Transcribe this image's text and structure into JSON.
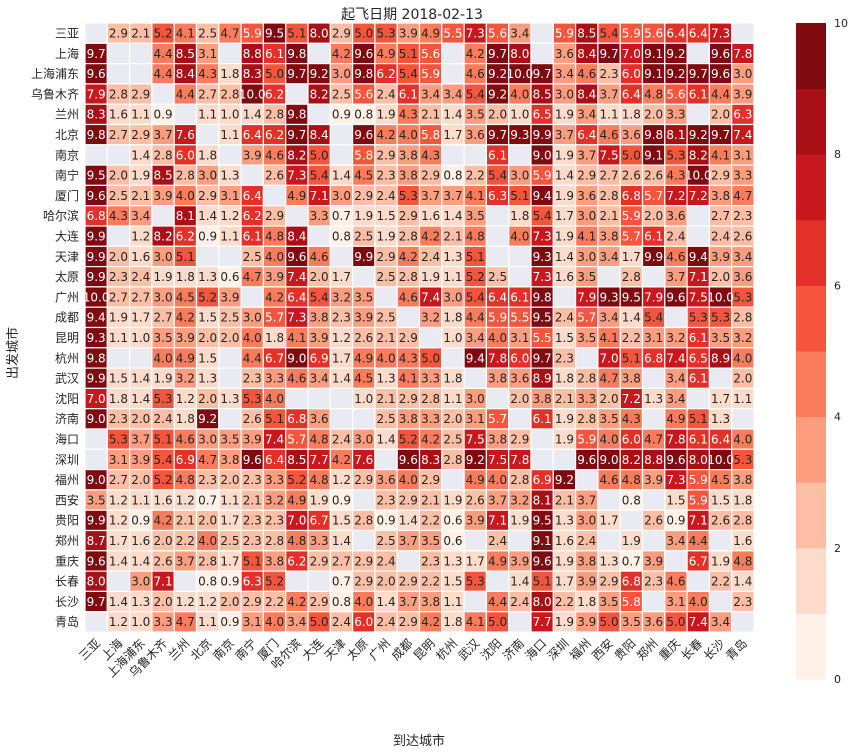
{
  "chart_data": {
    "type": "heatmap",
    "title": "起飞日期 2018-02-13",
    "xlabel": "到达城市",
    "ylabel": "出发城市",
    "x_categories": [
      "三亚",
      "上海",
      "上海浦东",
      "乌鲁木齐",
      "兰州",
      "北京",
      "南京",
      "南宁",
      "厦门",
      "哈尔滨",
      "大连",
      "天津",
      "太原",
      "广州",
      "成都",
      "昆明",
      "杭州",
      "武汉",
      "沈阳",
      "济南",
      "海口",
      "深圳",
      "福州",
      "西安",
      "贵阳",
      "郑州",
      "重庆",
      "长春",
      "长沙",
      "青岛"
    ],
    "y_categories": [
      "三亚",
      "上海",
      "上海浦东",
      "乌鲁木齐",
      "兰州",
      "北京",
      "南京",
      "南宁",
      "厦门",
      "哈尔滨",
      "大连",
      "天津",
      "太原",
      "广州",
      "成都",
      "昆明",
      "杭州",
      "武汉",
      "沈阳",
      "济南",
      "海口",
      "深圳",
      "福州",
      "西安",
      "贵阳",
      "郑州",
      "重庆",
      "长春",
      "长沙",
      "青岛"
    ],
    "values": [
      [
        null,
        2.9,
        2.1,
        5.2,
        4.1,
        2.5,
        4.7,
        5.9,
        9.5,
        5.1,
        8.0,
        2.9,
        5.0,
        5.3,
        3.9,
        4.9,
        5.5,
        7.3,
        5.6,
        3.4,
        null,
        5.9,
        8.5,
        5.4,
        5.9,
        5.6,
        6.4,
        6.4,
        7.3,
        null
      ],
      [
        9.7,
        null,
        null,
        4.4,
        8.5,
        3.1,
        null,
        8.8,
        6.1,
        9.8,
        null,
        4.2,
        9.6,
        4.9,
        5.1,
        5.6,
        null,
        4.2,
        9.7,
        8.0,
        null,
        3.6,
        8.4,
        9.7,
        7.0,
        9.1,
        9.2,
        null,
        9.6,
        7.8
      ],
      [
        9.6,
        null,
        null,
        4.4,
        8.4,
        4.3,
        1.8,
        8.3,
        5.0,
        9.7,
        9.2,
        3.0,
        9.8,
        6.2,
        5.4,
        5.9,
        null,
        4.6,
        9.2,
        10.0,
        9.7,
        3.4,
        4.6,
        2.3,
        6.0,
        9.1,
        9.2,
        9.7,
        9.6,
        3.0
      ],
      [
        7.9,
        2.8,
        2.9,
        null,
        4.4,
        2.7,
        2.8,
        10.0,
        6.2,
        null,
        8.2,
        2.5,
        5.6,
        2.4,
        6.1,
        3.4,
        3.4,
        5.4,
        9.2,
        4.0,
        8.5,
        3.0,
        8.4,
        3.7,
        6.4,
        4.8,
        5.6,
        6.1,
        4.4,
        3.9
      ],
      [
        8.3,
        1.6,
        1.1,
        0.9,
        null,
        1.1,
        1.0,
        1.4,
        2.8,
        9.8,
        null,
        0.9,
        0.8,
        1.9,
        4.3,
        2.1,
        1.4,
        3.5,
        2.0,
        1.0,
        6.5,
        1.9,
        3.4,
        1.1,
        1.8,
        2.0,
        3.3,
        null,
        2.0,
        6.3
      ],
      [
        9.8,
        2.7,
        2.9,
        3.7,
        7.6,
        null,
        1.1,
        6.4,
        6.2,
        9.7,
        8.4,
        null,
        9.6,
        4.2,
        4.0,
        5.8,
        1.7,
        3.6,
        9.7,
        9.3,
        9.9,
        3.7,
        6.4,
        4.6,
        3.6,
        9.8,
        8.1,
        9.2,
        9.7,
        7.4
      ],
      [
        null,
        null,
        1.4,
        2.8,
        6.0,
        1.8,
        null,
        3.9,
        4.6,
        8.2,
        5.0,
        null,
        5.8,
        2.9,
        3.8,
        4.3,
        null,
        null,
        6.1,
        null,
        9.0,
        1.9,
        3.7,
        7.5,
        5.0,
        9.1,
        5.3,
        8.2,
        4.1,
        3.1
      ],
      [
        9.5,
        2.0,
        1.9,
        8.5,
        2.8,
        3.0,
        1.3,
        null,
        2.6,
        7.3,
        5.4,
        1.4,
        4.5,
        2.3,
        3.8,
        2.9,
        0.8,
        2.2,
        5.4,
        3.0,
        5.9,
        1.4,
        2.9,
        2.7,
        2.6,
        2.6,
        4.3,
        10.0,
        2.9,
        3.3
      ],
      [
        9.6,
        2.5,
        2.1,
        3.9,
        4.0,
        2.9,
        3.1,
        6.4,
        null,
        4.9,
        7.1,
        3.0,
        2.9,
        2.4,
        5.3,
        3.7,
        3.7,
        4.1,
        6.3,
        5.1,
        9.4,
        1.9,
        3.6,
        2.8,
        6.8,
        5.7,
        7.2,
        7.2,
        3.8,
        4.7
      ],
      [
        6.8,
        4.3,
        3.4,
        null,
        8.1,
        1.4,
        1.2,
        6.2,
        2.9,
        null,
        3.3,
        0.7,
        1.9,
        1.5,
        2.9,
        1.6,
        1.4,
        3.5,
        null,
        1.8,
        5.4,
        1.7,
        3.0,
        2.1,
        5.9,
        2.0,
        3.6,
        null,
        2.7,
        2.3
      ],
      [
        9.9,
        null,
        1.2,
        8.2,
        6.2,
        0.9,
        1.1,
        6.1,
        4.8,
        8.4,
        null,
        0.8,
        2.5,
        1.9,
        2.8,
        4.2,
        2.1,
        4.8,
        null,
        4.0,
        7.3,
        1.9,
        4.1,
        3.8,
        5.7,
        6.1,
        2.4,
        null,
        2.4,
        2.6
      ],
      [
        9.9,
        2.0,
        1.6,
        3.0,
        5.1,
        null,
        null,
        2.5,
        4.0,
        9.6,
        4.6,
        null,
        9.9,
        2.9,
        4.2,
        2.4,
        1.3,
        5.1,
        null,
        null,
        9.3,
        1.4,
        3.0,
        3.4,
        1.7,
        9.9,
        4.6,
        9.4,
        3.9,
        3.4
      ],
      [
        9.9,
        2.3,
        2.4,
        1.9,
        1.8,
        1.3,
        0.6,
        4.7,
        3.9,
        7.4,
        2.0,
        1.7,
        null,
        2.5,
        2.8,
        1.9,
        1.1,
        5.2,
        2.5,
        null,
        7.3,
        1.6,
        3.5,
        null,
        2.8,
        null,
        3.7,
        7.1,
        2.0,
        3.6
      ],
      [
        10.0,
        2.7,
        2.7,
        3.0,
        4.5,
        5.2,
        3.9,
        null,
        4.2,
        6.4,
        5.4,
        3.2,
        3.5,
        null,
        4.6,
        7.4,
        3.0,
        5.4,
        6.4,
        6.1,
        9.8,
        null,
        7.9,
        9.3,
        9.5,
        7.9,
        9.6,
        7.5,
        10.0,
        5.3
      ],
      [
        9.4,
        1.9,
        1.7,
        2.7,
        4.2,
        1.5,
        2.5,
        3.0,
        5.7,
        7.3,
        3.8,
        2.3,
        3.9,
        2.5,
        null,
        3.2,
        1.8,
        4.4,
        5.9,
        5.5,
        9.5,
        2.4,
        5.7,
        3.4,
        1.4,
        5.4,
        null,
        5.3,
        5.3,
        2.8
      ],
      [
        9.3,
        1.1,
        1.0,
        3.5,
        3.9,
        2.0,
        2.0,
        4.0,
        1.8,
        4.1,
        3.9,
        1.2,
        2.6,
        2.1,
        2.9,
        null,
        1.0,
        3.4,
        4.0,
        3.1,
        5.5,
        1.5,
        3.5,
        4.1,
        2.2,
        3.1,
        3.2,
        6.1,
        3.5,
        3.2
      ],
      [
        9.8,
        null,
        null,
        4.0,
        4.9,
        1.5,
        null,
        4.4,
        6.7,
        9.0,
        6.9,
        1.7,
        4.9,
        4.0,
        4.3,
        5.0,
        null,
        9.4,
        7.8,
        6.0,
        9.7,
        2.3,
        null,
        7.0,
        5.1,
        6.8,
        7.4,
        6.5,
        8.9,
        4.0
      ],
      [
        9.9,
        1.5,
        1.4,
        1.9,
        3.2,
        1.3,
        null,
        2.3,
        3.3,
        4.6,
        3.4,
        1.4,
        4.5,
        1.3,
        4.1,
        3.3,
        1.8,
        null,
        3.8,
        3.6,
        8.9,
        1.8,
        2.8,
        4.7,
        3.8,
        null,
        3.4,
        6.1,
        null,
        2.0
      ],
      [
        7.0,
        1.8,
        1.4,
        5.3,
        1.2,
        2.0,
        1.3,
        5.3,
        4.0,
        null,
        null,
        null,
        1.0,
        2.1,
        2.9,
        2.8,
        1.1,
        3.0,
        null,
        2.0,
        3.8,
        2.1,
        3.3,
        2.0,
        7.2,
        1.3,
        3.4,
        null,
        1.7,
        1.1
      ],
      [
        9.0,
        2.3,
        2.0,
        2.4,
        1.8,
        9.2,
        null,
        2.6,
        5.1,
        6.8,
        3.6,
        null,
        null,
        2.5,
        3.8,
        3.3,
        2.0,
        3.1,
        5.7,
        null,
        6.1,
        1.9,
        2.8,
        3.5,
        4.3,
        null,
        4.9,
        5.1,
        1.3,
        null
      ],
      [
        null,
        5.3,
        3.7,
        5.1,
        4.6,
        3.0,
        3.5,
        3.9,
        7.4,
        5.7,
        4.8,
        2.4,
        3.0,
        1.4,
        5.2,
        4.2,
        2.5,
        7.5,
        3.8,
        2.9,
        null,
        1.9,
        5.9,
        4.0,
        6.0,
        4.7,
        7.8,
        6.1,
        6.4,
        4.0
      ],
      [
        null,
        3.1,
        3.9,
        5.4,
        6.9,
        4.7,
        3.8,
        9.6,
        6.4,
        8.5,
        7.7,
        4.2,
        7.6,
        null,
        9.6,
        8.3,
        2.8,
        9.2,
        7.5,
        7.8,
        null,
        null,
        9.6,
        9.0,
        8.2,
        8.8,
        9.6,
        8.0,
        10.0,
        5.3
      ],
      [
        9.0,
        2.7,
        2.0,
        5.2,
        4.8,
        2.3,
        2.0,
        2.3,
        3.3,
        5.2,
        4.8,
        1.2,
        2.9,
        3.6,
        4.0,
        2.9,
        null,
        4.9,
        4.0,
        2.8,
        6.9,
        9.2,
        null,
        4.6,
        4.8,
        3.9,
        7.3,
        5.9,
        4.5,
        3.8
      ],
      [
        3.5,
        1.2,
        1.1,
        1.6,
        1.2,
        0.7,
        1.1,
        2.1,
        3.2,
        4.9,
        1.9,
        0.9,
        null,
        2.3,
        2.9,
        2.1,
        1.9,
        2.6,
        3.7,
        3.2,
        8.1,
        2.1,
        3.7,
        null,
        0.8,
        null,
        1.5,
        5.9,
        1.5,
        1.8
      ],
      [
        9.9,
        1.2,
        0.9,
        4.2,
        2.1,
        2.0,
        1.7,
        2.3,
        2.3,
        7.0,
        6.7,
        1.5,
        2.8,
        0.9,
        1.4,
        2.2,
        0.6,
        3.9,
        7.1,
        1.9,
        9.5,
        1.3,
        3.0,
        1.7,
        null,
        2.6,
        0.9,
        7.1,
        2.6,
        2.8
      ],
      [
        8.7,
        1.7,
        1.6,
        2.0,
        2.2,
        4.0,
        2.5,
        2.3,
        2.8,
        4.8,
        3.3,
        1.4,
        null,
        2.5,
        3.7,
        3.5,
        0.6,
        null,
        2.4,
        null,
        9.1,
        1.6,
        2.4,
        null,
        1.9,
        null,
        3.4,
        4.4,
        null,
        1.6
      ],
      [
        9.6,
        1.4,
        1.4,
        2.6,
        3.7,
        2.8,
        1.7,
        5.1,
        3.8,
        6.2,
        2.9,
        2.7,
        2.9,
        2.4,
        null,
        2.3,
        1.3,
        1.7,
        4.9,
        3.9,
        9.6,
        1.9,
        3.8,
        1.3,
        0.7,
        3.9,
        null,
        6.7,
        1.9,
        4.8
      ],
      [
        8.0,
        null,
        3.0,
        7.1,
        null,
        0.8,
        0.9,
        6.3,
        5.2,
        null,
        null,
        0.7,
        2.9,
        2.0,
        2.9,
        2.2,
        1.5,
        5.3,
        null,
        1.4,
        5.1,
        1.7,
        3.9,
        2.9,
        6.8,
        2.3,
        4.6,
        null,
        2.2,
        1.4
      ],
      [
        9.7,
        1.4,
        1.3,
        2.0,
        1.2,
        1.2,
        2.0,
        2.9,
        2.2,
        4.2,
        2.9,
        0.8,
        4.0,
        1.4,
        3.7,
        3.8,
        1.1,
        null,
        4.4,
        2.4,
        8.0,
        2.2,
        1.8,
        3.5,
        5.8,
        null,
        3.1,
        4.0,
        null,
        2.3
      ],
      [
        null,
        1.2,
        1.0,
        3.3,
        4.7,
        1.1,
        0.9,
        3.1,
        4.0,
        3.4,
        5.0,
        2.4,
        6.0,
        2.4,
        2.9,
        4.2,
        1.8,
        4.1,
        5.0,
        null,
        7.7,
        1.9,
        3.9,
        5.0,
        3.5,
        3.6,
        5.0,
        7.4,
        3.4,
        null
      ]
    ],
    "vmin": 0,
    "vmax": 10,
    "colorbar_ticks": [
      0,
      2,
      4,
      6,
      8,
      10
    ],
    "colormap": "Reds",
    "colorbar_bins": 10,
    "missing_color": "#eaeaf2",
    "grid": false,
    "colors": {
      "bins": [
        "#fff0e8",
        "#fddbcb",
        "#fcbea5",
        "#fc9d7f",
        "#fb7c5c",
        "#f5553c",
        "#e33028",
        "#c8181d",
        "#a91016",
        "#7f0a10"
      ],
      "background": "#ffffff",
      "missing": "#eaeaf2",
      "text_dark": "#262626",
      "text_light": "#ffffff"
    }
  }
}
